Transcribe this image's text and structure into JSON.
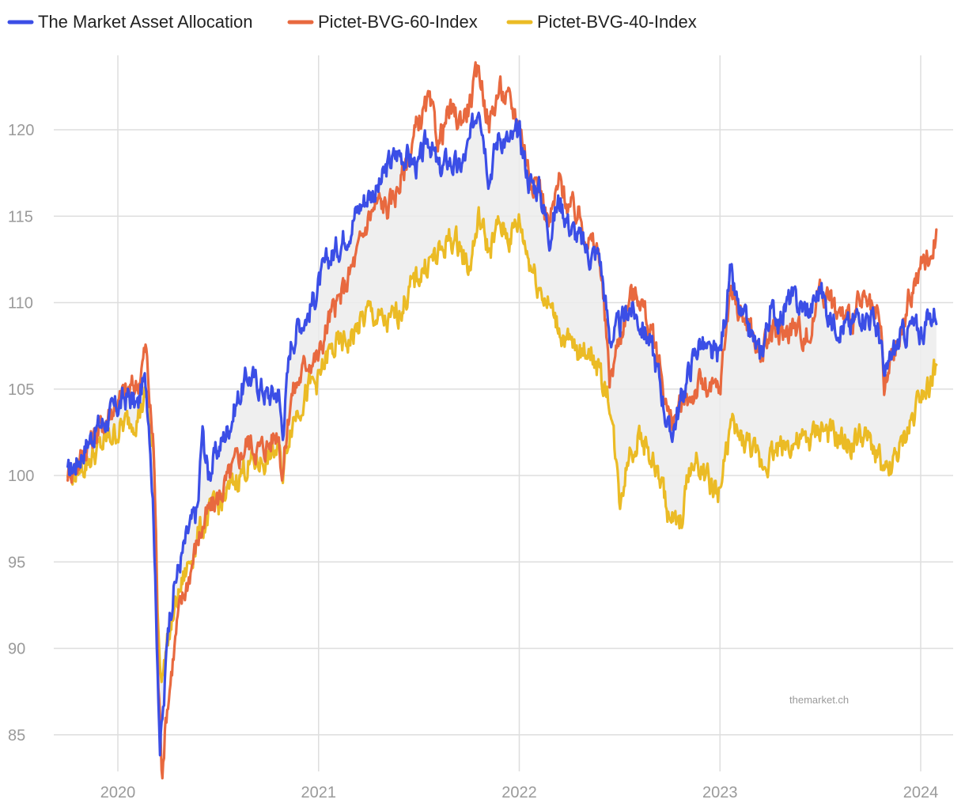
{
  "chart_data": {
    "type": "line",
    "title": "",
    "xlabel": "",
    "ylabel": "",
    "x_ticks": [
      {
        "label": "2020",
        "year": 2020.0
      },
      {
        "label": "2021",
        "year": 2021.0
      },
      {
        "label": "2022",
        "year": 2022.0
      },
      {
        "label": "2023",
        "year": 2023.0
      },
      {
        "label": "2024",
        "year": 2024.0
      }
    ],
    "y_ticks": [
      85,
      90,
      95,
      100,
      105,
      110,
      115,
      120
    ],
    "xlim": [
      2019.74,
      2024.08
    ],
    "ylim": [
      83,
      124
    ],
    "grid": true,
    "legend_position": "top-left",
    "watermark": "themarket.ch",
    "shaded_band": "between The Market Asset Allocation and Pictet-BVG-40-Index",
    "series": [
      {
        "name": "The Market Asset Allocation",
        "color": "#3b4ee6",
        "points": [
          [
            2019.75,
            100.0
          ],
          [
            2019.8,
            100.9
          ],
          [
            2019.85,
            102.0
          ],
          [
            2019.9,
            102.8
          ],
          [
            2019.95,
            103.3
          ],
          [
            2020.0,
            104.0
          ],
          [
            2020.05,
            104.6
          ],
          [
            2020.1,
            103.9
          ],
          [
            2020.12,
            105.2
          ],
          [
            2020.14,
            105.3
          ],
          [
            2020.16,
            102.5
          ],
          [
            2020.18,
            97.2
          ],
          [
            2020.19,
            92.0
          ],
          [
            2020.2,
            88.5
          ],
          [
            2020.21,
            84.3
          ],
          [
            2020.23,
            86.8
          ],
          [
            2020.25,
            91.5
          ],
          [
            2020.28,
            93.6
          ],
          [
            2020.31,
            95.0
          ],
          [
            2020.35,
            96.6
          ],
          [
            2020.4,
            98.2
          ],
          [
            2020.42,
            102.6
          ],
          [
            2020.45,
            100.1
          ],
          [
            2020.5,
            101.5
          ],
          [
            2020.55,
            102.8
          ],
          [
            2020.6,
            104.5
          ],
          [
            2020.65,
            105.8
          ],
          [
            2020.7,
            105.3
          ],
          [
            2020.75,
            104.6
          ],
          [
            2020.8,
            104.9
          ],
          [
            2020.82,
            102.5
          ],
          [
            2020.86,
            107.5
          ],
          [
            2020.9,
            108.8
          ],
          [
            2020.95,
            109.4
          ],
          [
            2021.0,
            111.0
          ],
          [
            2021.05,
            112.5
          ],
          [
            2021.1,
            113.3
          ],
          [
            2021.15,
            114.3
          ],
          [
            2021.2,
            115.5
          ],
          [
            2021.25,
            116.3
          ],
          [
            2021.3,
            116.6
          ],
          [
            2021.35,
            118.0
          ],
          [
            2021.4,
            118.7
          ],
          [
            2021.45,
            118.4
          ],
          [
            2021.5,
            117.8
          ],
          [
            2021.55,
            119.6
          ],
          [
            2021.6,
            117.5
          ],
          [
            2021.65,
            118.3
          ],
          [
            2021.7,
            117.6
          ],
          [
            2021.75,
            119.0
          ],
          [
            2021.8,
            121.9
          ],
          [
            2021.85,
            117.4
          ],
          [
            2021.9,
            119.8
          ],
          [
            2021.95,
            119.2
          ],
          [
            2022.0,
            119.7
          ],
          [
            2022.05,
            117.0
          ],
          [
            2022.1,
            116.6
          ],
          [
            2022.15,
            114.0
          ],
          [
            2022.2,
            116.0
          ],
          [
            2022.25,
            114.5
          ],
          [
            2022.3,
            113.6
          ],
          [
            2022.35,
            112.8
          ],
          [
            2022.4,
            112.8
          ],
          [
            2022.45,
            108.0
          ],
          [
            2022.5,
            108.5
          ],
          [
            2022.55,
            109.8
          ],
          [
            2022.6,
            108.9
          ],
          [
            2022.65,
            107.8
          ],
          [
            2022.7,
            105.5
          ],
          [
            2022.75,
            102.2
          ],
          [
            2022.8,
            104.0
          ],
          [
            2022.85,
            106.2
          ],
          [
            2022.9,
            107.8
          ],
          [
            2022.95,
            106.8
          ],
          [
            2023.0,
            107.0
          ],
          [
            2023.05,
            111.5
          ],
          [
            2023.1,
            109.2
          ],
          [
            2023.15,
            108.3
          ],
          [
            2023.2,
            106.8
          ],
          [
            2023.25,
            109.5
          ],
          [
            2023.3,
            109.2
          ],
          [
            2023.35,
            110.2
          ],
          [
            2023.4,
            109.8
          ],
          [
            2023.45,
            109.5
          ],
          [
            2023.5,
            110.9
          ],
          [
            2023.55,
            109.0
          ],
          [
            2023.6,
            108.8
          ],
          [
            2023.65,
            108.5
          ],
          [
            2023.7,
            109.6
          ],
          [
            2023.75,
            109.2
          ],
          [
            2023.8,
            108.0
          ],
          [
            2023.82,
            105.2
          ],
          [
            2023.85,
            106.8
          ],
          [
            2023.9,
            107.9
          ],
          [
            2023.95,
            108.6
          ],
          [
            2024.0,
            108.3
          ],
          [
            2024.05,
            109.2
          ],
          [
            2024.08,
            109.6
          ]
        ]
      },
      {
        "name": "Pictet-BVG-60-Index",
        "color": "#e8693f",
        "points": [
          [
            2019.75,
            100.2
          ],
          [
            2019.8,
            100.7
          ],
          [
            2019.85,
            101.8
          ],
          [
            2019.9,
            102.5
          ],
          [
            2019.95,
            103.5
          ],
          [
            2020.0,
            104.3
          ],
          [
            2020.05,
            104.9
          ],
          [
            2020.1,
            105.3
          ],
          [
            2020.12,
            106.4
          ],
          [
            2020.14,
            107.4
          ],
          [
            2020.16,
            104.0
          ],
          [
            2020.18,
            101.2
          ],
          [
            2020.19,
            96.5
          ],
          [
            2020.2,
            88.5
          ],
          [
            2020.22,
            83.0
          ],
          [
            2020.24,
            86.0
          ],
          [
            2020.27,
            89.0
          ],
          [
            2020.3,
            91.8
          ],
          [
            2020.35,
            94.0
          ],
          [
            2020.4,
            96.4
          ],
          [
            2020.45,
            97.8
          ],
          [
            2020.5,
            98.7
          ],
          [
            2020.55,
            99.8
          ],
          [
            2020.6,
            101.0
          ],
          [
            2020.65,
            102.0
          ],
          [
            2020.7,
            101.5
          ],
          [
            2020.75,
            101.8
          ],
          [
            2020.8,
            102.7
          ],
          [
            2020.82,
            100.0
          ],
          [
            2020.86,
            104.5
          ],
          [
            2020.9,
            105.5
          ],
          [
            2020.95,
            106.8
          ],
          [
            2021.0,
            106.8
          ],
          [
            2021.05,
            109.0
          ],
          [
            2021.1,
            110.0
          ],
          [
            2021.15,
            111.5
          ],
          [
            2021.2,
            113.0
          ],
          [
            2021.25,
            115.0
          ],
          [
            2021.3,
            115.8
          ],
          [
            2021.35,
            115.5
          ],
          [
            2021.4,
            116.8
          ],
          [
            2021.45,
            118.5
          ],
          [
            2021.5,
            120.5
          ],
          [
            2021.55,
            121.5
          ],
          [
            2021.6,
            119.3
          ],
          [
            2021.65,
            121.0
          ],
          [
            2021.7,
            120.5
          ],
          [
            2021.75,
            121.4
          ],
          [
            2021.8,
            123.5
          ],
          [
            2021.85,
            120.3
          ],
          [
            2021.9,
            122.4
          ],
          [
            2021.95,
            121.5
          ],
          [
            2022.0,
            120.5
          ],
          [
            2022.05,
            117.5
          ],
          [
            2022.1,
            116.8
          ],
          [
            2022.15,
            114.5
          ],
          [
            2022.2,
            117.0
          ],
          [
            2022.25,
            115.5
          ],
          [
            2022.3,
            115.0
          ],
          [
            2022.35,
            113.5
          ],
          [
            2022.4,
            112.8
          ],
          [
            2022.45,
            105.5
          ],
          [
            2022.5,
            108.0
          ],
          [
            2022.55,
            110.3
          ],
          [
            2022.6,
            110.5
          ],
          [
            2022.65,
            108.4
          ],
          [
            2022.7,
            106.5
          ],
          [
            2022.75,
            103.0
          ],
          [
            2022.8,
            103.8
          ],
          [
            2022.85,
            104.5
          ],
          [
            2022.9,
            105.3
          ],
          [
            2022.95,
            104.8
          ],
          [
            2023.0,
            105.0
          ],
          [
            2023.05,
            110.8
          ],
          [
            2023.1,
            109.5
          ],
          [
            2023.15,
            108.6
          ],
          [
            2023.2,
            106.8
          ],
          [
            2023.25,
            108.2
          ],
          [
            2023.3,
            108.0
          ],
          [
            2023.35,
            108.6
          ],
          [
            2023.4,
            108.3
          ],
          [
            2023.45,
            108.0
          ],
          [
            2023.5,
            111.2
          ],
          [
            2023.55,
            110.0
          ],
          [
            2023.6,
            109.2
          ],
          [
            2023.65,
            109.0
          ],
          [
            2023.7,
            110.0
          ],
          [
            2023.75,
            109.5
          ],
          [
            2023.8,
            108.5
          ],
          [
            2023.82,
            104.8
          ],
          [
            2023.85,
            106.5
          ],
          [
            2023.9,
            108.0
          ],
          [
            2023.95,
            110.5
          ],
          [
            2024.0,
            112.0
          ],
          [
            2024.05,
            112.8
          ],
          [
            2024.08,
            114.0
          ]
        ]
      },
      {
        "name": "Pictet-BVG-40-Index",
        "color": "#ebbb25",
        "points": [
          [
            2019.75,
            100.1
          ],
          [
            2019.8,
            100.2
          ],
          [
            2019.85,
            100.9
          ],
          [
            2019.9,
            101.4
          ],
          [
            2019.95,
            102.1
          ],
          [
            2020.0,
            102.6
          ],
          [
            2020.05,
            103.1
          ],
          [
            2020.1,
            103.5
          ],
          [
            2020.12,
            104.1
          ],
          [
            2020.14,
            104.5
          ],
          [
            2020.16,
            102.8
          ],
          [
            2020.18,
            100.5
          ],
          [
            2020.19,
            97.0
          ],
          [
            2020.2,
            91.5
          ],
          [
            2020.22,
            88.0
          ],
          [
            2020.24,
            90.0
          ],
          [
            2020.27,
            91.5
          ],
          [
            2020.3,
            93.0
          ],
          [
            2020.35,
            94.8
          ],
          [
            2020.4,
            96.5
          ],
          [
            2020.45,
            97.6
          ],
          [
            2020.5,
            98.3
          ],
          [
            2020.55,
            99.0
          ],
          [
            2020.6,
            100.0
          ],
          [
            2020.65,
            100.6
          ],
          [
            2020.7,
            100.8
          ],
          [
            2020.75,
            101.0
          ],
          [
            2020.8,
            101.5
          ],
          [
            2020.82,
            100.0
          ],
          [
            2020.86,
            103.0
          ],
          [
            2020.9,
            104.0
          ],
          [
            2020.95,
            105.0
          ],
          [
            2021.0,
            105.5
          ],
          [
            2021.05,
            107.0
          ],
          [
            2021.1,
            107.5
          ],
          [
            2021.15,
            107.8
          ],
          [
            2021.2,
            108.6
          ],
          [
            2021.25,
            109.5
          ],
          [
            2021.3,
            109.0
          ],
          [
            2021.35,
            108.7
          ],
          [
            2021.4,
            109.5
          ],
          [
            2021.45,
            110.6
          ],
          [
            2021.5,
            111.6
          ],
          [
            2021.55,
            112.4
          ],
          [
            2021.6,
            112.7
          ],
          [
            2021.65,
            113.7
          ],
          [
            2021.7,
            113.4
          ],
          [
            2021.75,
            112.0
          ],
          [
            2021.8,
            114.9
          ],
          [
            2021.85,
            113.0
          ],
          [
            2021.9,
            114.5
          ],
          [
            2021.95,
            113.8
          ],
          [
            2022.0,
            114.7
          ],
          [
            2022.05,
            112.5
          ],
          [
            2022.1,
            111.0
          ],
          [
            2022.15,
            109.8
          ],
          [
            2022.2,
            108.5
          ],
          [
            2022.25,
            107.5
          ],
          [
            2022.3,
            107.0
          ],
          [
            2022.35,
            107.5
          ],
          [
            2022.4,
            105.8
          ],
          [
            2022.45,
            104.5
          ],
          [
            2022.5,
            98.6
          ],
          [
            2022.55,
            101.5
          ],
          [
            2022.6,
            102.3
          ],
          [
            2022.65,
            101.2
          ],
          [
            2022.7,
            99.8
          ],
          [
            2022.75,
            97.5
          ],
          [
            2022.8,
            97.0
          ],
          [
            2022.85,
            100.5
          ],
          [
            2022.9,
            100.6
          ],
          [
            2022.95,
            99.5
          ],
          [
            2023.0,
            99.0
          ],
          [
            2023.05,
            102.8
          ],
          [
            2023.1,
            102.1
          ],
          [
            2023.15,
            101.8
          ],
          [
            2023.2,
            100.5
          ],
          [
            2023.25,
            101.2
          ],
          [
            2023.3,
            101.7
          ],
          [
            2023.35,
            101.9
          ],
          [
            2023.4,
            101.8
          ],
          [
            2023.45,
            102.0
          ],
          [
            2023.5,
            102.8
          ],
          [
            2023.55,
            102.3
          ],
          [
            2023.6,
            102.0
          ],
          [
            2023.65,
            101.8
          ],
          [
            2023.7,
            102.3
          ],
          [
            2023.75,
            101.8
          ],
          [
            2023.8,
            101.0
          ],
          [
            2023.82,
            99.6
          ],
          [
            2023.85,
            100.5
          ],
          [
            2023.9,
            101.5
          ],
          [
            2023.95,
            103.0
          ],
          [
            2024.0,
            105.0
          ],
          [
            2024.05,
            105.5
          ],
          [
            2024.08,
            106.2
          ]
        ]
      }
    ]
  }
}
